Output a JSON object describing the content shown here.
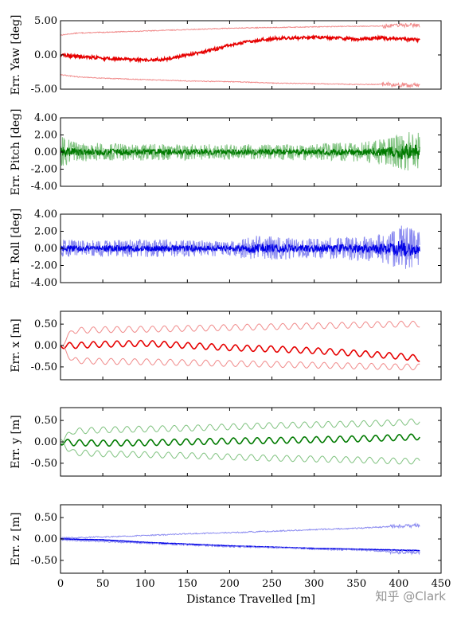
{
  "watermark": "知乎 @Clark",
  "colors": {
    "red": "#e60000",
    "red_light": "#f08a8a",
    "green": "#007a00",
    "green_light": "#7fc27f",
    "blue": "#0000e6",
    "blue_light": "#8a8af0"
  },
  "chart_data": [
    {
      "type": "line",
      "ylabel": "Err. Yaw [deg]",
      "ylim": [
        -5,
        5
      ],
      "yticks": [
        -5,
        0,
        5
      ],
      "ytick_labels": [
        "-5.00",
        "0.00",
        "5.00"
      ],
      "xlim": [
        0,
        450
      ],
      "color": "red",
      "series": [
        {
          "role": "upper-bound",
          "x": [
            0,
            20,
            50,
            100,
            150,
            200,
            250,
            300,
            350,
            380,
            400,
            425
          ],
          "y": [
            2.9,
            3.2,
            3.3,
            3.5,
            3.7,
            3.9,
            4.0,
            4.1,
            4.2,
            4.2,
            4.3,
            4.3
          ]
        },
        {
          "role": "error",
          "x": [
            0,
            20,
            50,
            100,
            125,
            150,
            175,
            200,
            225,
            250,
            275,
            300,
            325,
            350,
            375,
            400,
            425
          ],
          "y": [
            0.0,
            -0.2,
            -0.5,
            -0.8,
            -0.6,
            0.0,
            0.6,
            1.4,
            2.0,
            2.4,
            2.5,
            2.6,
            2.5,
            2.3,
            2.5,
            2.3,
            2.2
          ]
        },
        {
          "role": "lower-bound",
          "x": [
            0,
            20,
            50,
            100,
            150,
            200,
            250,
            300,
            350,
            380,
            400,
            425
          ],
          "y": [
            -2.9,
            -3.2,
            -3.4,
            -3.6,
            -3.8,
            -3.9,
            -4.1,
            -4.2,
            -4.3,
            -4.3,
            -4.4,
            -4.4
          ]
        }
      ]
    },
    {
      "type": "line",
      "ylabel": "Err. Pitch [deg]",
      "ylim": [
        -4,
        4
      ],
      "yticks": [
        -4,
        -2,
        0,
        2,
        4
      ],
      "ytick_labels": [
        "-4.00",
        "-2.00",
        "0.00",
        "2.00",
        "4.00"
      ],
      "xlim": [
        0,
        450
      ],
      "color": "green",
      "series": [
        {
          "role": "error",
          "x": [
            0,
            425
          ],
          "y": [
            0.0,
            0.0
          ]
        },
        {
          "role": "noise-envelope",
          "x": [
            0,
            20,
            100,
            200,
            300,
            360,
            390,
            410,
            425
          ],
          "y": [
            2.5,
            1.5,
            1.3,
            1.2,
            1.3,
            1.6,
            2.2,
            3.5,
            3.0
          ]
        }
      ]
    },
    {
      "type": "line",
      "ylabel": "Err. Roll [deg]",
      "ylim": [
        -4,
        4
      ],
      "yticks": [
        -4,
        -2,
        0,
        2,
        4
      ],
      "ytick_labels": [
        "-4.00",
        "-2.00",
        "0.00",
        "2.00",
        "4.00"
      ],
      "xlim": [
        0,
        450
      ],
      "color": "blue",
      "series": [
        {
          "role": "error",
          "x": [
            0,
            425
          ],
          "y": [
            0.0,
            0.0
          ]
        },
        {
          "role": "noise-envelope",
          "x": [
            0,
            20,
            100,
            200,
            230,
            300,
            360,
            390,
            405,
            425
          ],
          "y": [
            1.5,
            1.2,
            1.4,
            1.2,
            2.0,
            1.5,
            2.0,
            2.6,
            3.7,
            2.5
          ]
        }
      ]
    },
    {
      "type": "line",
      "ylabel": "Err. x [m]",
      "ylim": [
        -0.8,
        0.8
      ],
      "yticks": [
        -0.5,
        0,
        0.5
      ],
      "ytick_labels": [
        "-0.50",
        "0.00",
        "0.50"
      ],
      "xlim": [
        0,
        450
      ],
      "color": "red",
      "series": [
        {
          "role": "upper-bound",
          "x": [
            0,
            15,
            50,
            100,
            150,
            200,
            250,
            300,
            350,
            400,
            425
          ],
          "y": [
            0.0,
            0.35,
            0.37,
            0.38,
            0.4,
            0.42,
            0.44,
            0.46,
            0.48,
            0.5,
            0.5
          ]
        },
        {
          "role": "error",
          "x": [
            0,
            15,
            50,
            100,
            150,
            200,
            250,
            300,
            350,
            400,
            425
          ],
          "y": [
            0.0,
            0.0,
            0.03,
            0.05,
            0.0,
            -0.05,
            -0.08,
            -0.12,
            -0.18,
            -0.25,
            -0.3
          ]
        },
        {
          "role": "lower-bound",
          "x": [
            0,
            15,
            50,
            100,
            150,
            200,
            250,
            300,
            350,
            400,
            425
          ],
          "y": [
            0.0,
            -0.35,
            -0.37,
            -0.38,
            -0.4,
            -0.42,
            -0.44,
            -0.46,
            -0.48,
            -0.5,
            -0.5
          ]
        }
      ]
    },
    {
      "type": "line",
      "ylabel": "Err. y [m]",
      "ylim": [
        -0.8,
        0.8
      ],
      "yticks": [
        -0.5,
        0,
        0.5
      ],
      "ytick_labels": [
        "-0.50",
        "0.00",
        "0.50"
      ],
      "xlim": [
        0,
        450
      ],
      "color": "green",
      "series": [
        {
          "role": "upper-bound",
          "x": [
            0,
            15,
            50,
            100,
            150,
            200,
            250,
            300,
            350,
            400,
            425
          ],
          "y": [
            0.0,
            0.25,
            0.28,
            0.3,
            0.32,
            0.35,
            0.38,
            0.4,
            0.42,
            0.45,
            0.48
          ]
        },
        {
          "role": "error",
          "x": [
            0,
            15,
            50,
            100,
            150,
            200,
            250,
            300,
            350,
            400,
            425
          ],
          "y": [
            0.0,
            -0.02,
            -0.03,
            -0.02,
            0.0,
            0.02,
            0.03,
            0.05,
            0.07,
            0.1,
            0.12
          ]
        },
        {
          "role": "lower-bound",
          "x": [
            0,
            15,
            50,
            100,
            150,
            200,
            250,
            300,
            350,
            400,
            425
          ],
          "y": [
            0.0,
            -0.25,
            -0.28,
            -0.3,
            -0.32,
            -0.35,
            -0.38,
            -0.4,
            -0.42,
            -0.45,
            -0.45
          ]
        }
      ]
    },
    {
      "type": "line",
      "ylabel": "Err. z [m]",
      "ylim": [
        -0.8,
        0.8
      ],
      "yticks": [
        -0.5,
        0,
        0.5
      ],
      "ytick_labels": [
        "-0.50",
        "0.00",
        "0.50"
      ],
      "xlim": [
        0,
        450
      ],
      "xlabel": "Distance Travelled [m]",
      "xticks": [
        0,
        50,
        100,
        150,
        200,
        250,
        300,
        350,
        400,
        450
      ],
      "xtick_labels": [
        "0",
        "50",
        "100",
        "150",
        "200",
        "250",
        "300",
        "350",
        "400",
        "450"
      ],
      "color": "blue",
      "series": [
        {
          "role": "upper-bound",
          "x": [
            0,
            50,
            100,
            150,
            200,
            250,
            300,
            350,
            400,
            425
          ],
          "y": [
            0.02,
            0.05,
            0.08,
            0.12,
            0.15,
            0.18,
            0.22,
            0.25,
            0.3,
            0.32
          ]
        },
        {
          "role": "error",
          "x": [
            0,
            50,
            100,
            150,
            200,
            250,
            300,
            350,
            400,
            425
          ],
          "y": [
            0.0,
            -0.02,
            -0.08,
            -0.12,
            -0.16,
            -0.19,
            -0.22,
            -0.24,
            -0.26,
            -0.27
          ]
        },
        {
          "role": "lower-bound",
          "x": [
            0,
            50,
            100,
            150,
            200,
            250,
            300,
            350,
            400,
            425
          ],
          "y": [
            -0.02,
            -0.06,
            -0.1,
            -0.14,
            -0.18,
            -0.2,
            -0.24,
            -0.26,
            -0.3,
            -0.32
          ]
        }
      ]
    }
  ]
}
